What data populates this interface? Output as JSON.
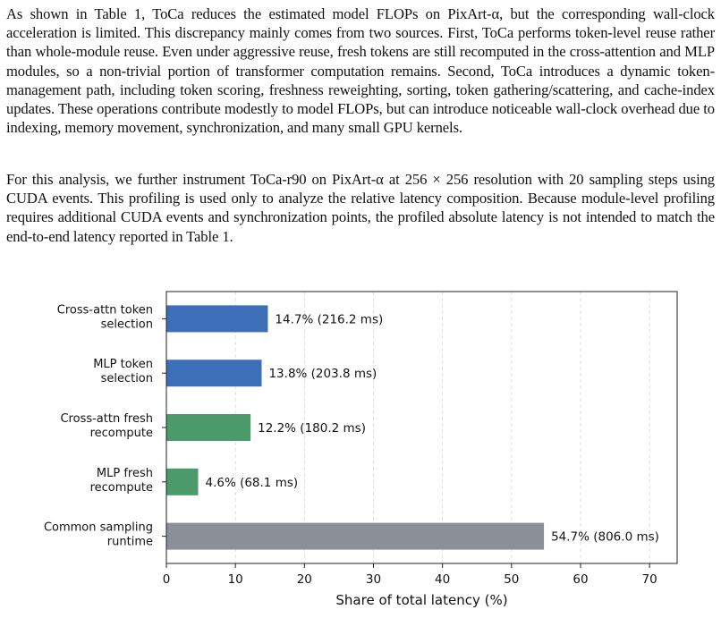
{
  "paper": {
    "paragraphs": [
      "As shown in Table 1, ToCa reduces the estimated model FLOPs on PixArt-α, but the corresponding wall-clock acceleration is limited. This discrepancy mainly comes from two sources. First, ToCa performs token-level reuse rather than whole-module reuse. Even under aggressive reuse, fresh tokens are still recomputed in the cross-attention and MLP modules, so a non-trivial portion of transformer computation remains. Second, ToCa introduces a dynamic token-management path, including token scoring, freshness reweighting, sorting, token gathering/scattering, and cache-index updates. These operations contribute modestly to model FLOPs, but can introduce noticeable wall-clock overhead due to indexing, memory movement, synchronization, and many small GPU kernels.",
      "For this analysis, we further instrument ToCa-r90 on PixArt-α at 256 × 256 resolution with 20 sampling steps using CUDA events. This profiling is used only to analyze the relative latency composition. Because module-level profiling requires additional CUDA events and synchronization points, the profiled absolute latency is not intended to match the end-to-end latency reported in Table 1."
    ]
  },
  "chart_data": {
    "type": "bar",
    "orientation": "horizontal",
    "title": "",
    "xlabel": "Share of total latency (%)",
    "ylabel": "",
    "xlim": [
      0,
      74
    ],
    "xticks": [
      0,
      10,
      20,
      30,
      40,
      50,
      60,
      70
    ],
    "grid": "vertical dashed",
    "categories": [
      [
        "Cross-attn token",
        "selection"
      ],
      [
        "MLP token",
        "selection"
      ],
      [
        "Cross-attn fresh",
        "recompute"
      ],
      [
        "MLP fresh",
        "recompute"
      ],
      [
        "Common sampling",
        "runtime"
      ]
    ],
    "values": [
      14.7,
      13.8,
      12.2,
      4.6,
      54.7
    ],
    "data_labels": [
      "14.7% (216.2 ms)",
      "13.8% (203.8 ms)",
      "12.2% (180.2 ms)",
      "4.6% (68.1 ms)",
      "54.7% (806.0 ms)"
    ],
    "colors": [
      "#3d6fb8",
      "#3d6fb8",
      "#4a9a6a",
      "#4a9a6a",
      "#8a8f98"
    ]
  }
}
